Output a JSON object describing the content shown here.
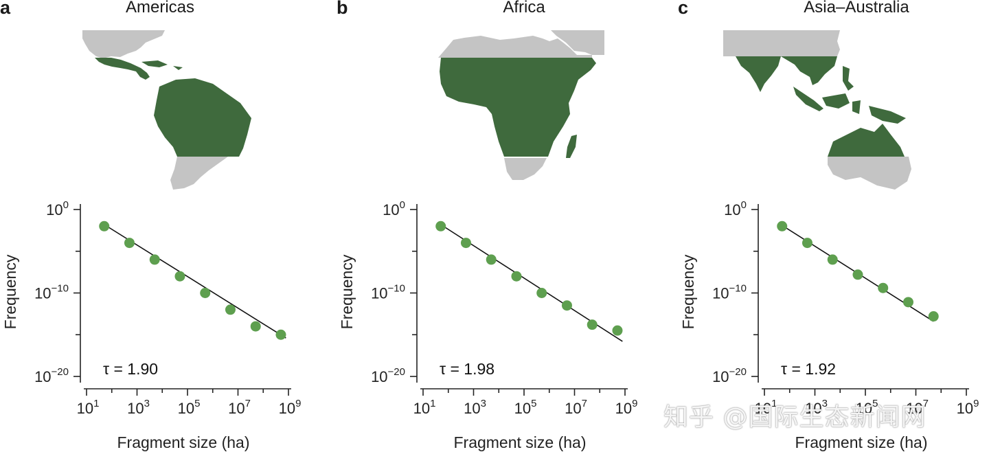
{
  "panels": [
    {
      "letter": "a",
      "title": "Americas",
      "tau_text": "τ = 1.90"
    },
    {
      "letter": "b",
      "title": "Africa",
      "tau_text": "τ = 1.98"
    },
    {
      "letter": "c",
      "title": "Asia–Australia",
      "tau_text": "τ = 1.92"
    }
  ],
  "watermark": "知乎 @国际生态新闻网",
  "colors": {
    "point": "#5e9f4f",
    "land_green": "#3f6a3d",
    "land_gray": "#c4c4c4"
  },
  "chart_data": [
    {
      "type": "scatter",
      "title": "Americas",
      "xlabel": "Fragment size (ha)",
      "ylabel": "Frequency",
      "xscale": "log",
      "yscale": "log",
      "xlim": [
        1,
        9
      ],
      "ylim": [
        -20,
        0
      ],
      "x_tick_exponents": [
        1,
        3,
        5,
        7,
        9
      ],
      "y_tick_exponents": [
        0,
        -10,
        -20
      ],
      "x_tick_labels": [
        "10",
        "10",
        "10",
        "10",
        "10"
      ],
      "x_tick_sups": [
        "1",
        "3",
        "5",
        "7",
        "9"
      ],
      "y_tick_labels": [
        "10",
        "10",
        "10"
      ],
      "y_tick_sups": [
        "0",
        "−10",
        "−20"
      ],
      "series": [
        {
          "name": "Americas",
          "log10_x": [
            1.7,
            2.7,
            3.7,
            4.7,
            5.7,
            6.7,
            7.7,
            8.7
          ],
          "log10_y": [
            -2,
            -4,
            -6,
            -8,
            -10,
            -12,
            -14,
            -15
          ]
        }
      ],
      "fit": {
        "tau": 1.9,
        "log10_x": [
          1.7,
          8.9
        ],
        "log10_y": [
          -1.8,
          -15.4
        ]
      }
    },
    {
      "type": "scatter",
      "title": "Africa",
      "xlabel": "Fragment size (ha)",
      "ylabel": "Frequency",
      "xscale": "log",
      "yscale": "log",
      "xlim": [
        1,
        9
      ],
      "ylim": [
        -20,
        0
      ],
      "x_tick_exponents": [
        1,
        3,
        5,
        7,
        9
      ],
      "y_tick_exponents": [
        0,
        -10,
        -20
      ],
      "x_tick_labels": [
        "10",
        "10",
        "10",
        "10",
        "10"
      ],
      "x_tick_sups": [
        "1",
        "3",
        "5",
        "7",
        "9"
      ],
      "y_tick_labels": [
        "10",
        "10",
        "10"
      ],
      "y_tick_sups": [
        "0",
        "−10",
        "−20"
      ],
      "series": [
        {
          "name": "Africa",
          "log10_x": [
            1.7,
            2.7,
            3.7,
            4.7,
            5.7,
            6.7,
            7.7,
            8.7
          ],
          "log10_y": [
            -2,
            -4,
            -6,
            -8,
            -10,
            -11.5,
            -13.8,
            -14.5
          ]
        }
      ],
      "fit": {
        "tau": 1.98,
        "log10_x": [
          1.7,
          8.9
        ],
        "log10_y": [
          -1.8,
          -15.8
        ]
      }
    },
    {
      "type": "scatter",
      "title": "Asia–Australia",
      "xlabel": "Fragment size (ha)",
      "ylabel": "Frequency",
      "xscale": "log",
      "yscale": "log",
      "xlim": [
        1,
        9
      ],
      "ylim": [
        -20,
        0
      ],
      "x_tick_exponents": [
        1,
        3,
        5,
        7,
        9
      ],
      "y_tick_exponents": [
        0,
        -10,
        -20
      ],
      "x_tick_labels": [
        "10",
        "10",
        "10",
        "10",
        "10"
      ],
      "x_tick_sups": [
        "1",
        "3",
        "5",
        "7",
        "9"
      ],
      "y_tick_labels": [
        "10",
        "10",
        "10"
      ],
      "y_tick_sups": [
        "0",
        "−10",
        "−20"
      ],
      "series": [
        {
          "name": "Asia–Australia",
          "log10_x": [
            1.7,
            2.7,
            3.7,
            4.7,
            5.7,
            6.7,
            7.7
          ],
          "log10_y": [
            -2,
            -4,
            -6,
            -7.8,
            -9.4,
            -11.1,
            -12.8
          ]
        }
      ],
      "fit": {
        "tau": 1.92,
        "log10_x": [
          1.7,
          7.7
        ],
        "log10_y": [
          -1.9,
          -13.4
        ]
      }
    }
  ]
}
